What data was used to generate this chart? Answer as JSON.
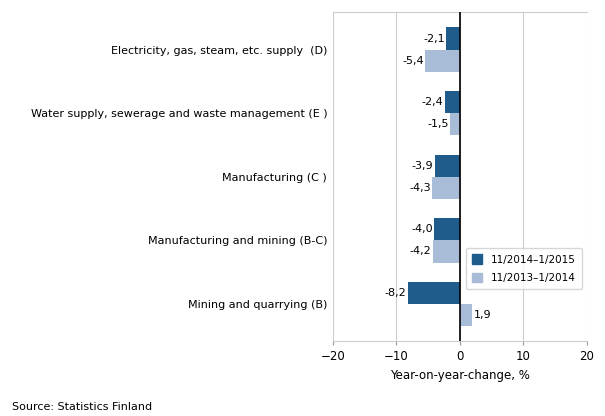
{
  "categories": [
    "Mining and quarrying (B)",
    "Manufacturing and mining (B-C)",
    "Manufacturing (C )",
    "Water supply, sewerage and waste management (E )",
    "Electricity, gas, steam, etc. supply  (D)"
  ],
  "series1_label": "11/2014–1/2015",
  "series2_label": "11/2013–1/2014",
  "series1_values": [
    -8.2,
    -4.0,
    -3.9,
    -2.4,
    -2.1
  ],
  "series2_values": [
    1.9,
    -4.2,
    -4.3,
    -1.5,
    -5.4
  ],
  "series1_color": "#1f5c8b",
  "series2_color": "#a8bcd8",
  "xlabel": "Year-on-year-change, %",
  "xlim": [
    -20,
    20
  ],
  "xticks": [
    -20,
    -10,
    0,
    10,
    20
  ],
  "source_text": "Source: Statistics Finland",
  "bar_height": 0.35,
  "label_values1": [
    "-8,2",
    "-4,0",
    "-3,9",
    "-2,4",
    "-2,1"
  ],
  "label_values2": [
    "1,9",
    "-4,2",
    "-4,3",
    "-1,5",
    "-5,4"
  ]
}
